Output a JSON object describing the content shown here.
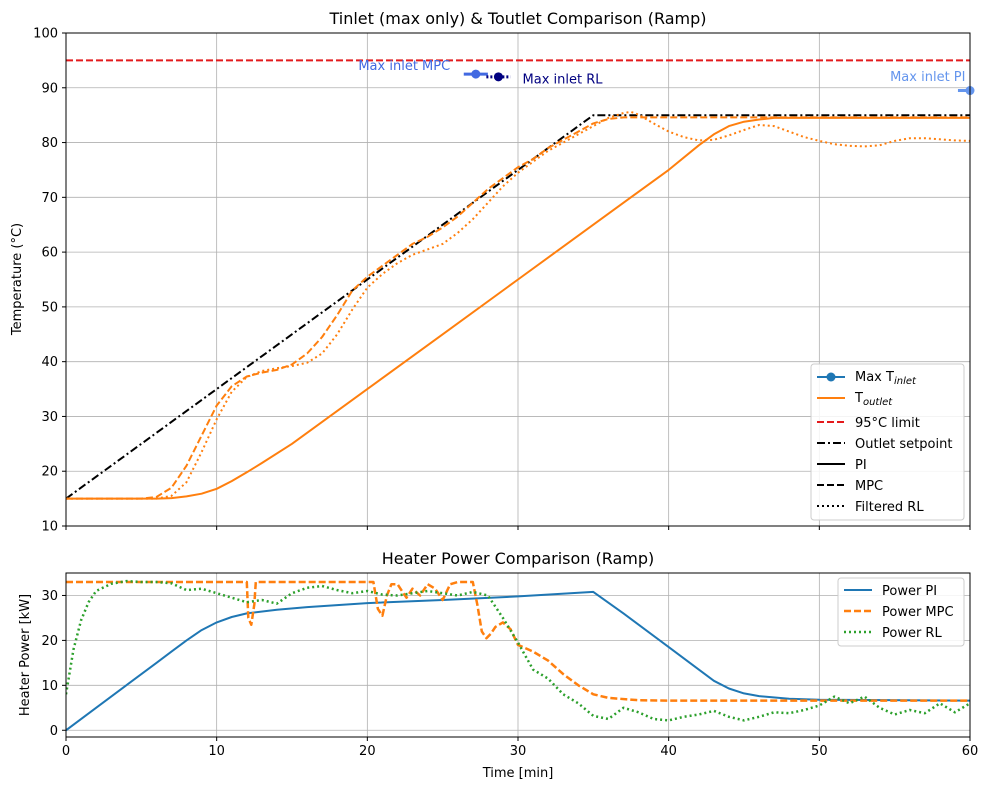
{
  "chart_data": [
    {
      "type": "line",
      "title": "Tinlet (max only) & Toutlet Comparison (Ramp)",
      "xlabel": "",
      "ylabel": "Temperature (°C)",
      "xlim": [
        0,
        60
      ],
      "ylim": [
        10,
        100
      ],
      "xticks": [
        0,
        10,
        20,
        30,
        40,
        50,
        60
      ],
      "yticks": [
        10,
        20,
        30,
        40,
        50,
        60,
        70,
        80,
        90,
        100
      ],
      "grid": true,
      "legend_position": "lower-right",
      "legend": [
        {
          "label": "Max T",
          "sub": "inlet",
          "style": "marker-line",
          "color": "#1f77b4"
        },
        {
          "label": "T",
          "sub": "outlet",
          "style": "solid",
          "color": "#ff7f0e"
        },
        {
          "label": "95°C limit",
          "style": "dashed",
          "color": "#e41a1c"
        },
        {
          "label": "Outlet setpoint",
          "style": "dashdot",
          "color": "#000000"
        },
        {
          "label": "PI",
          "style": "solid",
          "color": "#000000"
        },
        {
          "label": "MPC",
          "style": "dashed",
          "color": "#000000"
        },
        {
          "label": "Filtered RL",
          "style": "dotted",
          "color": "#000000"
        }
      ],
      "series": [
        {
          "name": "95°C limit",
          "style": "dashed",
          "color": "#e41a1c",
          "x": [
            0,
            60
          ],
          "y": [
            95,
            95
          ]
        },
        {
          "name": "Outlet setpoint",
          "style": "dashdot",
          "color": "#000000",
          "x": [
            0,
            35,
            60
          ],
          "y": [
            15,
            85,
            85
          ]
        },
        {
          "name": "Toutlet PI",
          "style": "solid",
          "color": "#ff7f0e",
          "x": [
            0,
            6,
            7,
            8,
            9,
            10,
            11,
            12,
            13,
            15,
            20,
            25,
            30,
            35,
            40,
            42,
            43,
            44,
            45,
            46,
            47,
            50,
            60
          ],
          "y": [
            15,
            15,
            15.1,
            15.4,
            15.9,
            16.8,
            18.2,
            19.8,
            21.5,
            25,
            35,
            45,
            55,
            65,
            75,
            79.5,
            81.5,
            83,
            83.8,
            84.2,
            84.5,
            84.5,
            84.5
          ]
        },
        {
          "name": "Toutlet MPC",
          "style": "dashed",
          "color": "#ff7f0e",
          "x": [
            0,
            5,
            6,
            7,
            8,
            9,
            10,
            11,
            12,
            13,
            14,
            15,
            16,
            17,
            18,
            19,
            20,
            21,
            22,
            23,
            24,
            25,
            26,
            27,
            28,
            29,
            30,
            31,
            32,
            33,
            34,
            35,
            36,
            37,
            38,
            40,
            60
          ],
          "y": [
            15,
            15,
            15.3,
            17,
            21,
            26.5,
            32,
            35.5,
            37.3,
            38,
            38.5,
            39.5,
            41.5,
            44.5,
            48.5,
            53,
            55.5,
            57.5,
            59.5,
            61.5,
            62.8,
            64.5,
            66.5,
            69,
            71.5,
            73.5,
            75.5,
            77,
            79,
            80.5,
            82,
            83.5,
            84.3,
            84.6,
            84.6,
            84.6,
            84.6
          ]
        },
        {
          "name": "Toutlet Filtered RL",
          "style": "dotted",
          "color": "#ff7f0e",
          "x": [
            0,
            6,
            7,
            8,
            9,
            10,
            11,
            12,
            13,
            14,
            15,
            16,
            17,
            18,
            19,
            20,
            21,
            22,
            23,
            24,
            25,
            26,
            27,
            28,
            29,
            30,
            31,
            32,
            33,
            34,
            35,
            36,
            37,
            37.5,
            38,
            39,
            40,
            41,
            42,
            43,
            44,
            45,
            46,
            47,
            48,
            49,
            50,
            51,
            52,
            53,
            54,
            55,
            56,
            57,
            58,
            59,
            60
          ],
          "y": [
            15,
            15,
            15.5,
            18,
            23.5,
            29.5,
            34.5,
            37.2,
            38.3,
            38.8,
            39.2,
            39.8,
            41.5,
            45,
            49.5,
            53.5,
            56,
            58,
            59.5,
            60.5,
            61.5,
            63.5,
            66,
            69,
            72,
            74.5,
            76.5,
            78.5,
            80,
            81.5,
            83,
            84.5,
            85.4,
            85.6,
            85.1,
            83.5,
            82,
            81,
            80.4,
            80.5,
            81.3,
            82.3,
            83.2,
            83,
            82,
            81,
            80.3,
            79.7,
            79.4,
            79.3,
            79.5,
            80.3,
            80.8,
            80.8,
            80.6,
            80.4,
            80.3
          ]
        }
      ],
      "markers": [
        {
          "name": "Max inlet PI",
          "x": 60,
          "y": 89.5,
          "color": "#6495ed",
          "line_x": [
            59.2,
            60
          ]
        },
        {
          "name": "Max inlet MPC",
          "x": 27.2,
          "y": 92.5,
          "color": "#4169e1",
          "line_x": [
            26.4,
            28
          ]
        },
        {
          "name": "Max inlet RL",
          "x": 28.7,
          "y": 92,
          "color": "#000080",
          "line_x": [
            27.9,
            29.5
          ]
        }
      ],
      "annotations": [
        {
          "text": "Max inlet MPC",
          "x": 25.5,
          "y": 93.2,
          "color": "#4169e1",
          "anchor": "end"
        },
        {
          "text": "Max inlet RL",
          "x": 30.3,
          "y": 90.8,
          "color": "#000080",
          "anchor": "start"
        },
        {
          "text": "Max inlet PI",
          "x": 59.7,
          "y": 91.2,
          "color": "#6495ed",
          "anchor": "end"
        }
      ]
    },
    {
      "type": "line",
      "title": "Heater Power Comparison (Ramp)",
      "xlabel": "Time [min]",
      "ylabel": "Heater Power [kW]",
      "xlim": [
        0,
        60
      ],
      "ylim": [
        -1.5,
        35
      ],
      "xticks": [
        0,
        10,
        20,
        30,
        40,
        50,
        60
      ],
      "yticks": [
        0,
        10,
        20,
        30
      ],
      "grid": true,
      "legend_position": "top-right",
      "legend": [
        {
          "label": "Power PI",
          "style": "solid",
          "color": "#1f77b4"
        },
        {
          "label": "Power MPC",
          "style": "dashed",
          "color": "#ff7f0e"
        },
        {
          "label": "Power RL",
          "style": "dotted",
          "color": "#2ca02c"
        }
      ],
      "series": [
        {
          "name": "Power PI",
          "style": "solid",
          "color": "#1f77b4",
          "x": [
            0,
            2,
            4,
            6,
            7,
            8,
            9,
            10,
            11,
            12,
            14,
            16,
            20,
            25,
            30,
            35,
            37,
            40,
            42,
            43,
            44,
            45,
            46,
            48,
            50,
            60
          ],
          "y": [
            0,
            5,
            10,
            15,
            17.5,
            20,
            22.3,
            24,
            25.2,
            26,
            26.8,
            27.4,
            28.3,
            29,
            29.8,
            30.8,
            26,
            18.5,
            13.5,
            11,
            9.3,
            8.2,
            7.6,
            7,
            6.8,
            6.6
          ]
        },
        {
          "name": "Power MPC",
          "style": "dashed",
          "color": "#ff7f0e",
          "x": [
            0,
            12,
            12.1,
            12.3,
            12.5,
            12.6,
            20.4,
            20.7,
            21,
            21.3,
            21.6,
            22,
            22.3,
            22.6,
            23,
            23.5,
            24,
            24.5,
            25,
            25.5,
            26,
            26.5,
            27,
            27.3,
            27.6,
            27.9,
            28.2,
            28.5,
            29,
            29.5,
            30,
            31,
            32,
            33,
            34,
            35,
            36,
            38,
            40,
            60
          ],
          "y": [
            33,
            33,
            25,
            23.5,
            28,
            33,
            33,
            27,
            25.5,
            30,
            32.5,
            32.5,
            31,
            29.5,
            31.5,
            30,
            32.5,
            31.5,
            29,
            32.5,
            33,
            33,
            33,
            28,
            22,
            20.5,
            21.5,
            23,
            24,
            22.5,
            19,
            17.5,
            15.5,
            12.5,
            10,
            8,
            7.2,
            6.7,
            6.6,
            6.6
          ]
        },
        {
          "name": "Power RL",
          "style": "dotted",
          "color": "#2ca02c",
          "x": [
            0,
            0.5,
            1,
            1.5,
            2,
            3,
            4,
            5,
            6,
            7,
            8,
            9,
            10,
            11,
            12,
            13,
            14,
            15,
            16,
            17,
            18,
            19,
            20,
            21,
            22,
            23,
            24,
            25,
            26,
            27,
            28,
            29,
            30,
            31,
            32,
            33,
            34,
            35,
            36,
            37,
            38,
            39,
            40,
            41,
            42,
            43,
            44,
            45,
            46,
            47,
            48,
            49,
            50,
            51,
            52,
            53,
            54,
            55,
            56,
            57,
            58,
            59,
            60
          ],
          "y": [
            8,
            18,
            24.5,
            28.5,
            31,
            32.6,
            33.2,
            33,
            33,
            32.7,
            31.2,
            31.5,
            30.5,
            29.5,
            28.5,
            29,
            28.2,
            30.5,
            31.7,
            32.1,
            31.2,
            30.5,
            31,
            30.2,
            30,
            30.5,
            31,
            30.5,
            30,
            30.8,
            30,
            25,
            19.5,
            13.5,
            11.5,
            8,
            6,
            3.2,
            2.5,
            5,
            4,
            2.5,
            2.2,
            3,
            3.5,
            4.3,
            3,
            2.2,
            3,
            4,
            3.8,
            4.5,
            5.5,
            7.5,
            6,
            7.5,
            5,
            3.5,
            4.5,
            3.8,
            6,
            4,
            6
          ]
        }
      ]
    }
  ]
}
